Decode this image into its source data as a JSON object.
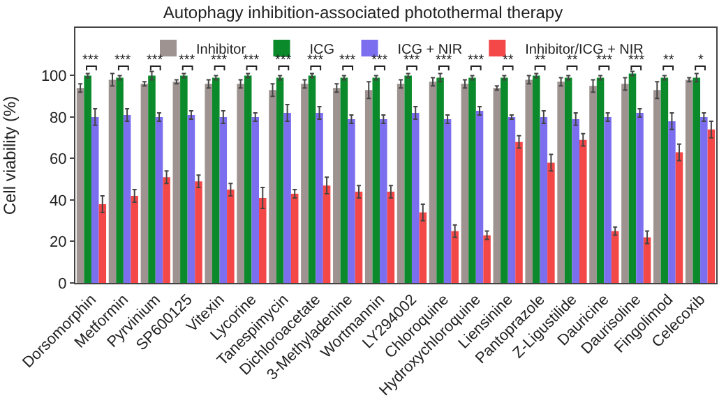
{
  "chart_data": {
    "type": "bar",
    "title": "Autophagy inhibition-associated photothermal therapy",
    "ylabel": "Cell viability (%)",
    "categories": [
      "Dorsomorphin",
      "Metformin",
      "Pyrvinium",
      "SP600125",
      "Vitexin",
      "Lycorine",
      "Tanespimycin",
      "Dichloroacetate",
      "3-Methyladenine",
      "Wortmannin",
      "LY294002",
      "Chloroquine",
      "Hydroxychloroquine",
      "Liensinine",
      "Pantoprazole",
      "Z-Ligustilide",
      "Dauricine",
      "Daurisoline",
      "Fingolimod",
      "Celecoxib"
    ],
    "series": [
      {
        "name": "Inhibitor",
        "color": "#9e9390",
        "values": [
          94,
          98,
          96,
          97,
          96,
          96,
          93,
          96,
          94,
          93,
          96,
          97,
          96,
          94,
          98,
          97,
          95,
          96,
          93,
          98
        ],
        "errors": [
          2,
          3,
          1,
          1,
          2,
          2,
          3,
          2,
          2,
          4,
          2,
          2,
          2,
          1,
          2,
          2,
          3,
          3,
          4,
          1
        ]
      },
      {
        "name": "ICG",
        "color": "#0a8a2a",
        "values": [
          100,
          99,
          100,
          100,
          99,
          100,
          99,
          100,
          99,
          99,
          100,
          99,
          99,
          99,
          100,
          99,
          99,
          101,
          99,
          99
        ],
        "errors": [
          1,
          1,
          2,
          1,
          1,
          1,
          1,
          1,
          1,
          1,
          1,
          2,
          1,
          1,
          1,
          1,
          1,
          1,
          1,
          2
        ]
      },
      {
        "name": "ICG + NIR",
        "color": "#7b6ff0",
        "values": [
          80,
          81,
          80,
          81,
          80,
          80,
          82,
          82,
          79,
          79,
          82,
          79,
          83,
          80,
          80,
          79,
          80,
          82,
          78,
          80
        ],
        "errors": [
          4,
          3,
          2,
          2,
          3,
          2,
          4,
          3,
          2,
          2,
          3,
          2,
          2,
          1,
          3,
          3,
          2,
          2,
          4,
          2
        ]
      },
      {
        "name": "Inhibitor/ICG + NIR",
        "color": "#f44848",
        "values": [
          38,
          42,
          51,
          49,
          45,
          41,
          43,
          47,
          44,
          44,
          34,
          25,
          23,
          68,
          58,
          69,
          25,
          22,
          63,
          74
        ],
        "errors": [
          4,
          3,
          3,
          3,
          3,
          5,
          2,
          4,
          3,
          3,
          4,
          3,
          2,
          3,
          4,
          3,
          2,
          3,
          4,
          4
        ]
      }
    ],
    "ylim": [
      0,
      123
    ],
    "yticks": [
      0,
      20,
      40,
      60,
      80,
      100
    ],
    "legend": "top",
    "annotations": [
      "***",
      "***",
      "***",
      "***",
      "***",
      "***",
      "***",
      "***",
      "***",
      "***",
      "***",
      "***",
      "***",
      "**",
      "**",
      "**",
      "***",
      "***",
      "**",
      "*"
    ]
  }
}
